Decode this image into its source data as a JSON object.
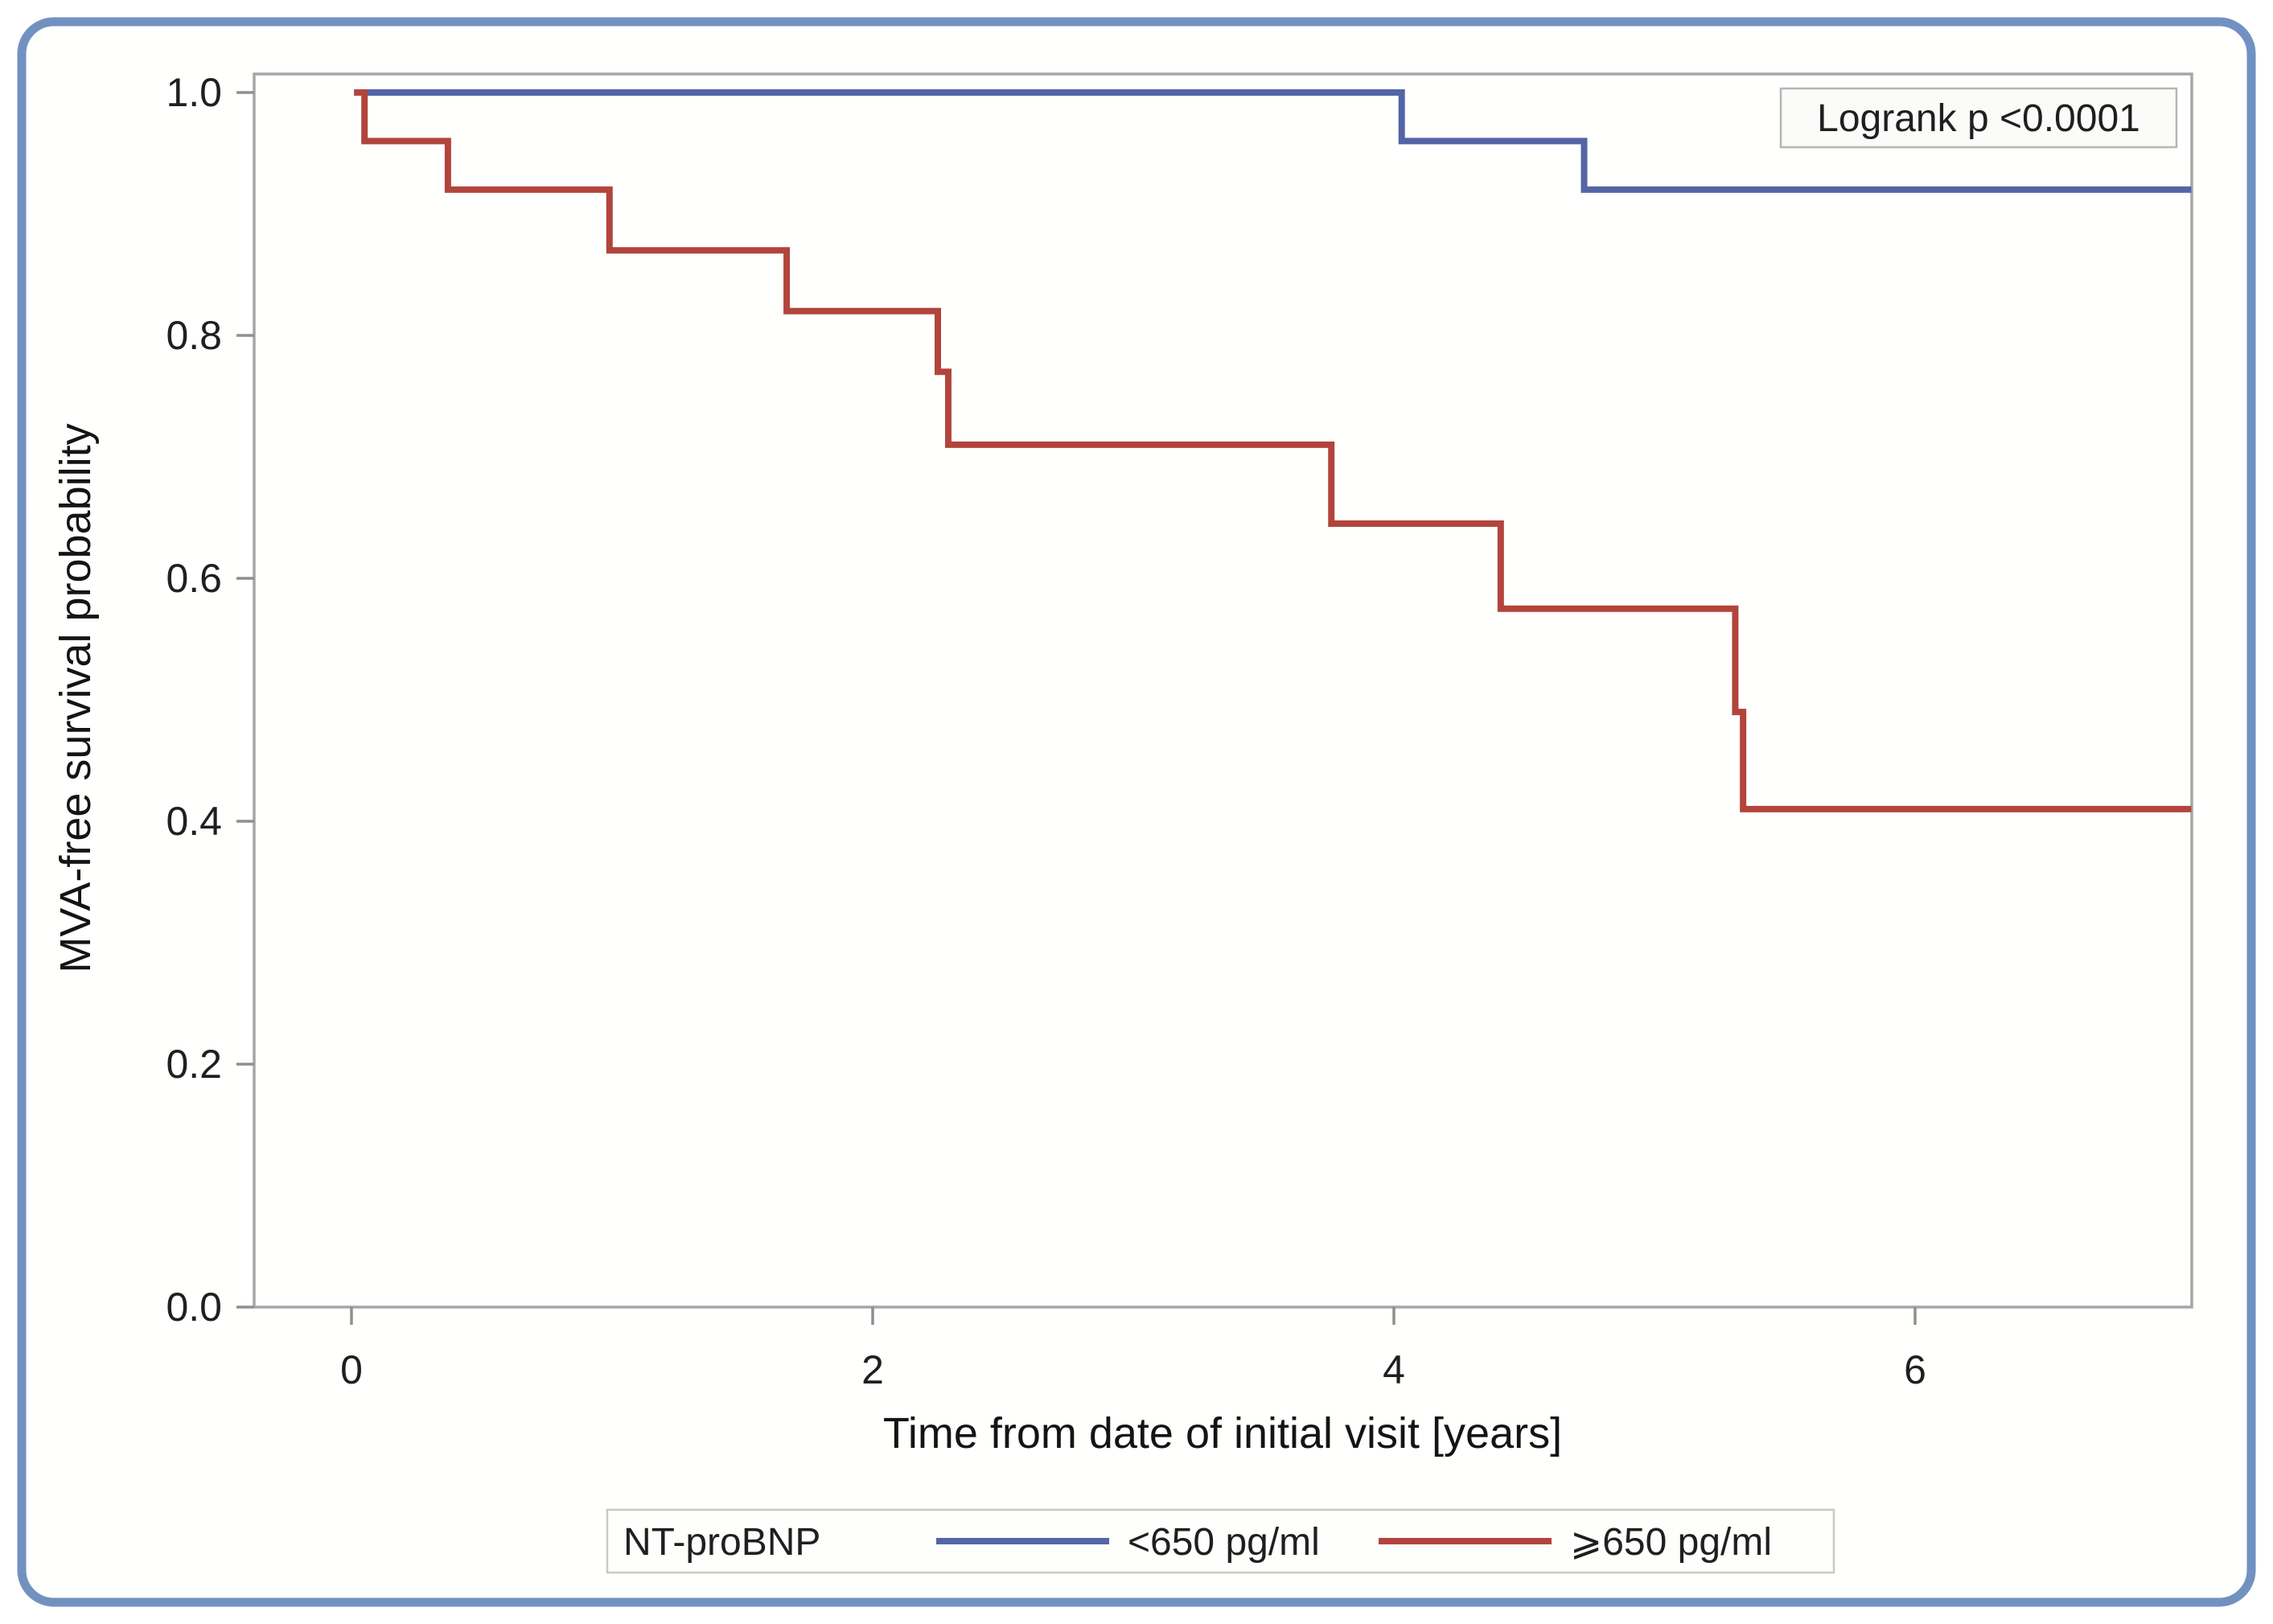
{
  "figure": {
    "background": "#fffffe",
    "outer_border_color": "#7191c1",
    "plot_border_color": "#a6a6a6",
    "tick_color": "#8f8f8f",
    "text_color": "#1f1f1f"
  },
  "annotation": {
    "logrank_label": "Logrank p <0.0001"
  },
  "legend": {
    "title": "NT-proBNP",
    "position": "bottom"
  },
  "chart_data": {
    "type": "line",
    "variant": "kaplan_meier_step",
    "title": "",
    "xlabel": "Time from date of initial visit [years]",
    "ylabel": "MVA-free survival probability",
    "xlim": [
      0,
      7.06
    ],
    "ylim": [
      0.0,
      1.0
    ],
    "grid": false,
    "legend_position": "bottom",
    "annotation": "Logrank p <0.0001",
    "xticks": [
      {
        "value": 0,
        "label": "0"
      },
      {
        "value": 2,
        "label": "2"
      },
      {
        "value": 4,
        "label": "4"
      },
      {
        "value": 6,
        "label": "6"
      }
    ],
    "yticks": [
      {
        "value": 1.0,
        "label": "1.0"
      },
      {
        "value": 0.8,
        "label": "0.8"
      },
      {
        "value": 0.6,
        "label": "0.6"
      },
      {
        "value": 0.4,
        "label": "0.4"
      },
      {
        "value": 0.2,
        "label": "0.2"
      },
      {
        "value": 0.0,
        "label": "0.0"
      }
    ],
    "series": [
      {
        "name": "<650 pg/ml",
        "color": "#5365a6",
        "step_points": [
          [
            0.01,
            1.0
          ],
          [
            4.03,
            0.96
          ],
          [
            4.73,
            0.92
          ],
          [
            7.06,
            0.92
          ]
        ]
      },
      {
        "name": "⩾650 pg/ml",
        "color": "#b2443c",
        "step_points": [
          [
            0.01,
            1.0
          ],
          [
            0.05,
            0.96
          ],
          [
            0.37,
            0.92
          ],
          [
            0.99,
            0.87
          ],
          [
            1.67,
            0.82
          ],
          [
            2.25,
            0.77
          ],
          [
            2.29,
            0.71
          ],
          [
            3.76,
            0.645
          ],
          [
            4.41,
            0.575
          ],
          [
            5.31,
            0.49
          ],
          [
            5.34,
            0.41
          ],
          [
            7.06,
            0.41
          ]
        ]
      }
    ]
  }
}
